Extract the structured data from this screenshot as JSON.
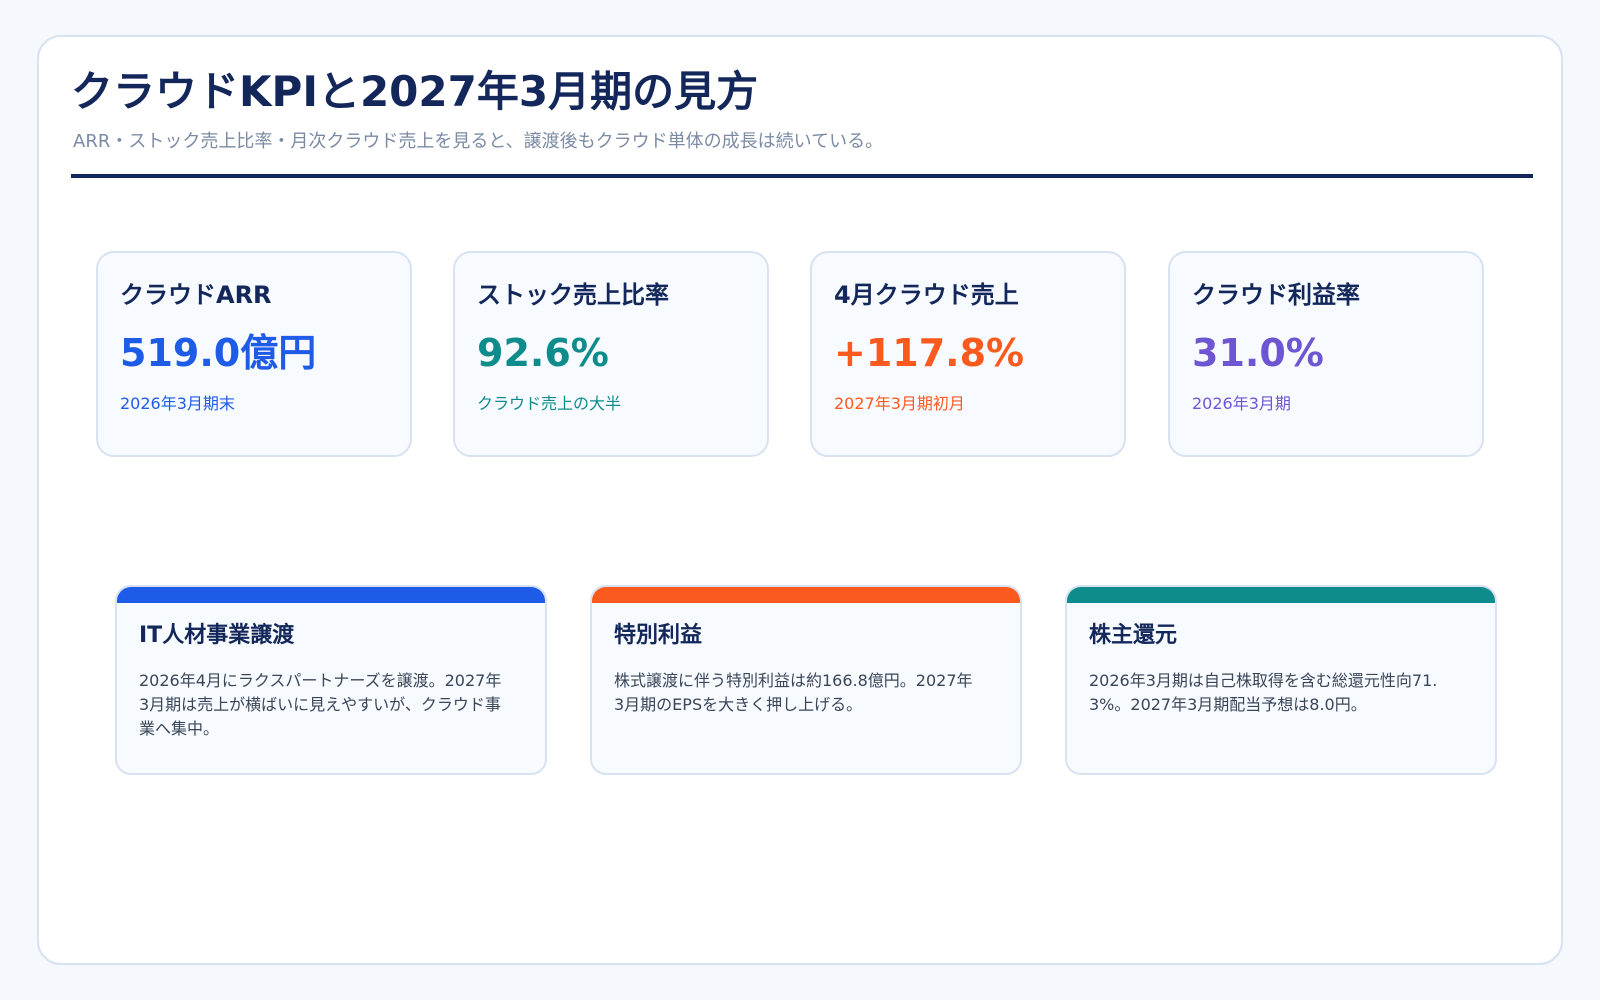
{
  "header": {
    "title": "クラウドKPIと2027年3月期の見方",
    "subtitle": "ARR・ストック売上比率・月次クラウド売上を見ると、譲渡後もクラウド単体の成長は続いている。"
  },
  "kpis": [
    {
      "label": "クラウドARR",
      "value": "519.0億円",
      "note": "2026年3月期末",
      "color": "#1e5be6"
    },
    {
      "label": "ストック売上比率",
      "value": "92.6%",
      "note": "クラウド売上の大半",
      "color": "#0e8c8c"
    },
    {
      "label": "4月クラウド売上",
      "value": "+117.8%",
      "note": "2027年3月期初月",
      "color": "#fa5a1e"
    },
    {
      "label": "クラウド利益率",
      "value": "31.0%",
      "note": "2026年3月期",
      "color": "#6e55d2"
    }
  ],
  "cards": [
    {
      "title": "IT人材事業譲渡",
      "body": "2026年4月にラクスパートナーズを譲渡。2027年3月期は売上が横ばいに見えやすいが、クラウド事業へ集中。",
      "accent": "#1e5be6"
    },
    {
      "title": "特別利益",
      "body": "株式譲渡に伴う特別利益は約166.8億円。2027年3月期のEPSを大きく押し上げる。",
      "accent": "#fa5a1e"
    },
    {
      "title": "株主還元",
      "body": "2026年3月期は自己株取得を含む総還元性向71.3%。2027年3月期配当予想は8.0円。",
      "accent": "#0e8c8c"
    }
  ]
}
